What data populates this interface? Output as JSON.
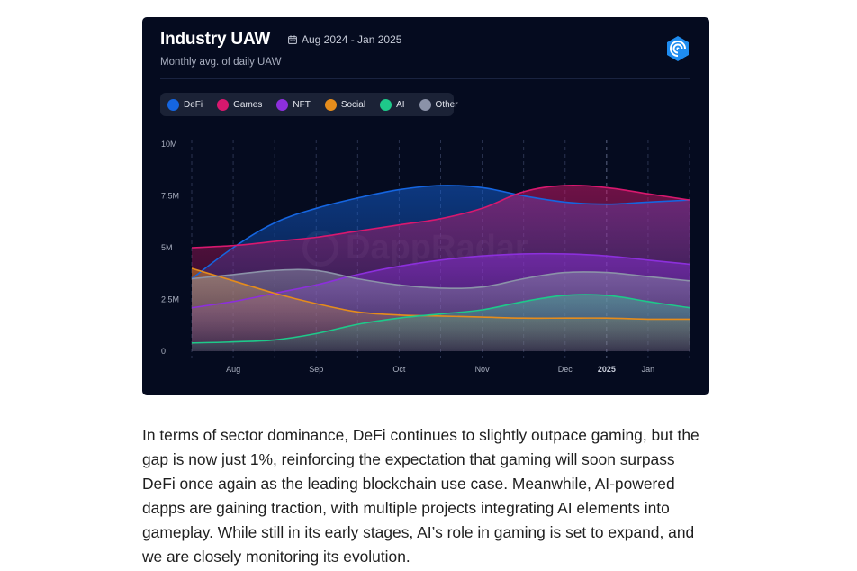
{
  "chart_data": {
    "type": "area",
    "title": "Industry UAW",
    "date_range": "Aug 2024 - Jan 2025",
    "subtitle": "Monthly avg. of daily UAW",
    "x_labels": [
      "Aug",
      "Sep",
      "Oct",
      "Nov",
      "Dec",
      "2025",
      "Jan"
    ],
    "y_ticks": [
      "0",
      "2.5M",
      "5M",
      "7.5M",
      "10M"
    ],
    "ylim": [
      0,
      10
    ],
    "grid": "vertical dashed",
    "legend_position": "top-left",
    "x": [
      0,
      0.5,
      1,
      1.5,
      2,
      2.5,
      3,
      3.5,
      4,
      4.5,
      5,
      5.5,
      6
    ],
    "series": [
      {
        "name": "DeFi",
        "color": "#1565e0",
        "values": [
          3.5,
          5.0,
          6.2,
          6.9,
          7.4,
          7.8,
          8.0,
          7.9,
          7.5,
          7.2,
          7.1,
          7.2,
          7.3
        ]
      },
      {
        "name": "Games",
        "color": "#d8186e",
        "values": [
          5.0,
          5.1,
          5.3,
          5.5,
          5.8,
          6.1,
          6.4,
          6.9,
          7.7,
          8.0,
          7.9,
          7.6,
          7.3
        ]
      },
      {
        "name": "NFT",
        "color": "#8c2fdc",
        "values": [
          2.1,
          2.4,
          2.8,
          3.2,
          3.7,
          4.1,
          4.4,
          4.6,
          4.7,
          4.7,
          4.6,
          4.4,
          4.2
        ]
      },
      {
        "name": "Social",
        "color": "#e58c1c",
        "values": [
          4.0,
          3.4,
          2.8,
          2.3,
          1.9,
          1.75,
          1.7,
          1.65,
          1.6,
          1.6,
          1.6,
          1.55,
          1.55
        ]
      },
      {
        "name": "AI",
        "color": "#1ec98a",
        "values": [
          0.4,
          0.45,
          0.55,
          0.85,
          1.3,
          1.6,
          1.8,
          2.0,
          2.4,
          2.7,
          2.7,
          2.4,
          2.1
        ]
      },
      {
        "name": "Other",
        "color": "#8b92a8",
        "values": [
          3.5,
          3.7,
          3.9,
          3.9,
          3.5,
          3.2,
          3.05,
          3.1,
          3.5,
          3.8,
          3.8,
          3.6,
          3.4
        ]
      }
    ]
  },
  "colors": {
    "card_bg": "#050b1f",
    "legend_bg": "#1b2236",
    "brand_blue": "#1e8cf0"
  },
  "icons": {
    "date": "calendar-icon",
    "brand": "dappradar-icon"
  },
  "article": {
    "paragraph": "In terms of sector dominance, DeFi continues to slightly outpace gaming, but the gap is now just 1%, reinforcing the expectation that gaming will soon surpass DeFi once again as the leading blockchain use case. Meanwhile, AI-powered dapps are gaining traction, with multiple projects integrating AI elements into gameplay. While still in its early stages, AI’s role in gaming is set to expand, and we are closely monitoring its evolution."
  }
}
